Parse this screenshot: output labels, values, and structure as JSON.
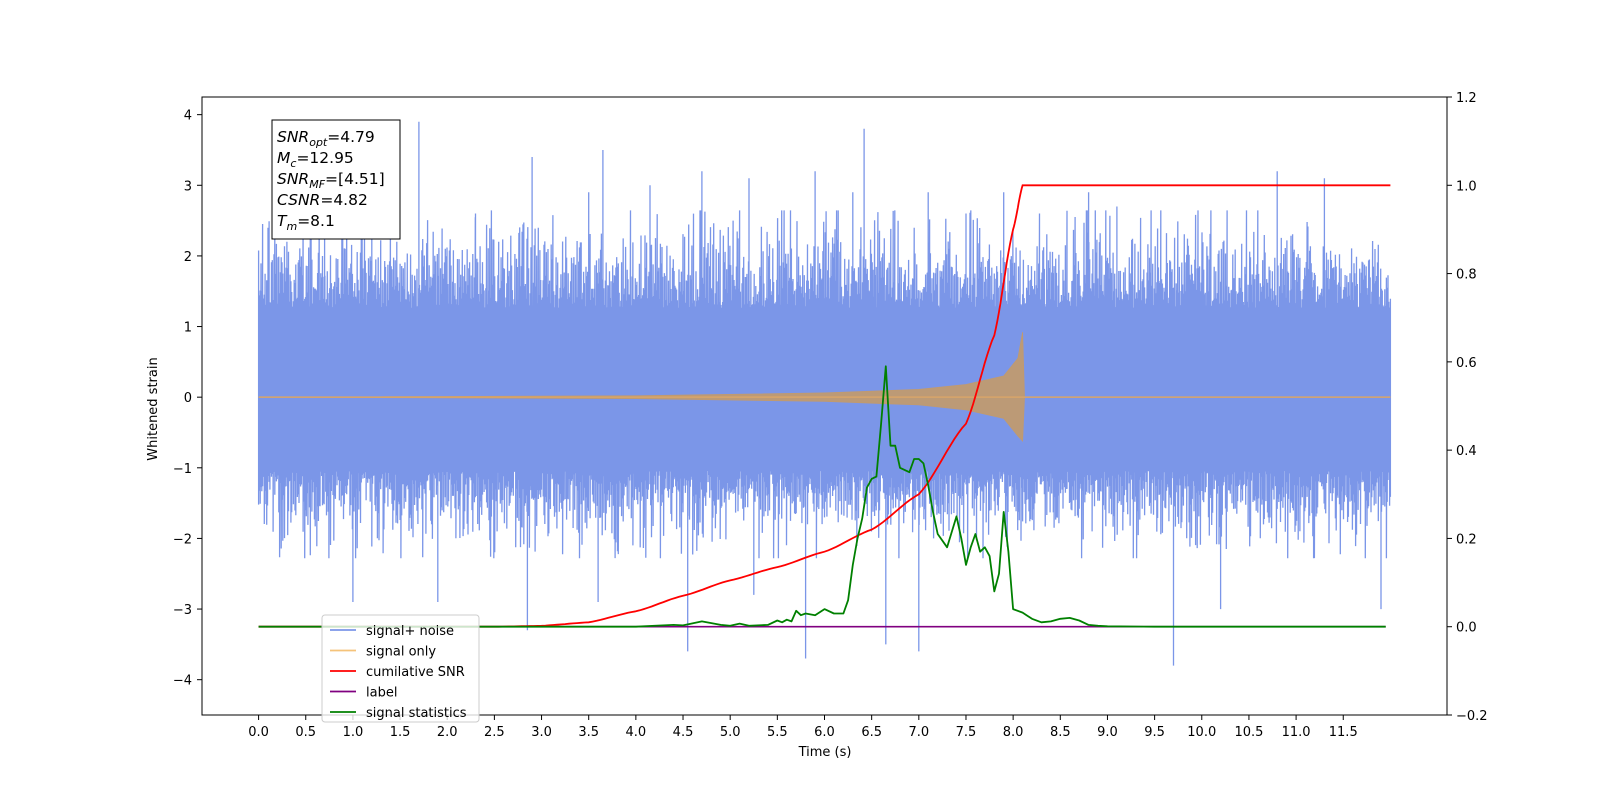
{
  "chart_data": {
    "type": "line",
    "xlabel": "Time (s)",
    "ylabel_left": "Whitened strain",
    "ylabel_right": "",
    "xlim": [
      -0.6,
      12.6
    ],
    "ylim_left": [
      -4.5,
      4.25
    ],
    "ylim_right": [
      -0.2,
      1.2
    ],
    "x_ticks": [
      "0.0",
      "0.5",
      "1.0",
      "1.5",
      "2.0",
      "2.5",
      "3.0",
      "3.5",
      "4.0",
      "4.5",
      "5.0",
      "5.5",
      "6.0",
      "6.5",
      "7.0",
      "7.5",
      "8.0",
      "8.5",
      "9.0",
      "9.5",
      "10.0",
      "10.5",
      "11.0",
      "11.5"
    ],
    "y_ticks_left": [
      "4",
      "3",
      "2",
      "1",
      "0",
      "−1",
      "−2",
      "−3",
      "−4"
    ],
    "y_ticks_right": [
      "1.2",
      "1.0",
      "0.8",
      "0.6",
      "0.4",
      "0.2",
      "0.0",
      "−0.2"
    ],
    "grid": false,
    "legend_position": "lower-left",
    "annotation": {
      "lines": [
        {
          "var": "SNR",
          "sub": "opt",
          "value": "=4.79"
        },
        {
          "var": "M",
          "sub": "c",
          "value": "=12.95"
        },
        {
          "var": "SNR",
          "sub": "MF",
          "value": "=[4.51]"
        },
        {
          "var": "CSNR",
          "sub": "",
          "value": "=4.82"
        },
        {
          "var": "T",
          "sub": "m",
          "value": "=8.1"
        }
      ]
    },
    "series": [
      {
        "name": "signal+ noise",
        "color": "#7b96e8",
        "axis": "left",
        "envelope": {
          "x_range": [
            0.0,
            12.0
          ],
          "typical_high": 2.3,
          "typical_low": -1.9,
          "spikes": [
            [
              0.1,
              2.4
            ],
            [
              0.3,
              2.2
            ],
            [
              0.7,
              2.6
            ],
            [
              1.0,
              -2.9
            ],
            [
              1.2,
              2.9
            ],
            [
              1.7,
              3.9
            ],
            [
              1.9,
              -2.9
            ],
            [
              2.3,
              2.6
            ],
            [
              2.85,
              -3.3
            ],
            [
              2.9,
              3.4
            ],
            [
              3.5,
              2.9
            ],
            [
              3.6,
              -2.9
            ],
            [
              3.65,
              3.5
            ],
            [
              4.15,
              3.0
            ],
            [
              4.55,
              -3.6
            ],
            [
              4.7,
              3.2
            ],
            [
              5.2,
              3.1
            ],
            [
              5.25,
              -2.8
            ],
            [
              5.8,
              -3.7
            ],
            [
              5.9,
              3.2
            ],
            [
              6.3,
              2.9
            ],
            [
              6.42,
              3.8
            ],
            [
              6.65,
              -3.5
            ],
            [
              7.0,
              -3.6
            ],
            [
              7.1,
              2.9
            ],
            [
              7.5,
              2.6
            ],
            [
              7.9,
              2.9
            ],
            [
              8.8,
              2.9
            ],
            [
              9.1,
              2.7
            ],
            [
              9.7,
              -3.8
            ],
            [
              10.2,
              -3.0
            ],
            [
              10.8,
              3.2
            ],
            [
              11.3,
              3.1
            ],
            [
              11.9,
              -3.0
            ]
          ]
        }
      },
      {
        "name": "signal only",
        "color": "#f5c37a",
        "axis": "left",
        "description_points": [
          [
            0.0,
            0.0
          ],
          [
            4.0,
            0.02
          ],
          [
            6.0,
            0.06
          ],
          [
            7.0,
            0.11
          ],
          [
            7.5,
            0.18
          ],
          [
            7.9,
            0.3
          ],
          [
            8.05,
            0.55
          ],
          [
            8.1,
            0.92
          ],
          [
            8.12,
            0.0
          ],
          [
            12.0,
            0.0
          ]
        ]
      },
      {
        "name": "cumilative SNR",
        "color": "#ff0000",
        "axis": "right",
        "x": [
          0.0,
          2.5,
          3.0,
          3.5,
          4.0,
          4.5,
          5.0,
          5.5,
          6.0,
          6.5,
          7.0,
          7.5,
          7.8,
          8.0,
          8.1,
          12.0
        ],
        "y": [
          0.0,
          0.0,
          0.002,
          0.01,
          0.035,
          0.07,
          0.105,
          0.135,
          0.17,
          0.22,
          0.3,
          0.46,
          0.66,
          0.9,
          1.0,
          1.0
        ]
      },
      {
        "name": "label",
        "color": "#800080",
        "axis": "right",
        "x": [
          0.0,
          11.95
        ],
        "y": [
          0.0,
          0.0
        ]
      },
      {
        "name": "signal statistics",
        "color": "#008000",
        "axis": "right",
        "x": [
          0.0,
          3.0,
          4.0,
          4.4,
          4.5,
          4.7,
          4.9,
          5.0,
          5.1,
          5.2,
          5.4,
          5.5,
          5.55,
          5.6,
          5.65,
          5.7,
          5.75,
          5.8,
          5.9,
          6.0,
          6.1,
          6.2,
          6.25,
          6.3,
          6.35,
          6.4,
          6.45,
          6.5,
          6.55,
          6.6,
          6.65,
          6.7,
          6.75,
          6.8,
          6.9,
          6.95,
          7.0,
          7.05,
          7.1,
          7.15,
          7.2,
          7.3,
          7.4,
          7.45,
          7.5,
          7.55,
          7.6,
          7.65,
          7.7,
          7.75,
          7.8,
          7.85,
          7.9,
          7.95,
          8.0,
          8.1,
          8.15,
          8.2,
          8.3,
          8.4,
          8.5,
          8.6,
          8.7,
          8.8,
          8.9,
          9.0,
          9.5,
          10.0,
          11.95
        ],
        "y": [
          0.0,
          0.0,
          0.0,
          0.004,
          0.003,
          0.012,
          0.004,
          0.002,
          0.007,
          0.002,
          0.004,
          0.014,
          0.01,
          0.016,
          0.012,
          0.036,
          0.026,
          0.03,
          0.026,
          0.04,
          0.03,
          0.03,
          0.06,
          0.14,
          0.2,
          0.245,
          0.315,
          0.335,
          0.34,
          0.46,
          0.59,
          0.41,
          0.41,
          0.36,
          0.35,
          0.38,
          0.38,
          0.37,
          0.32,
          0.26,
          0.21,
          0.18,
          0.25,
          0.2,
          0.14,
          0.18,
          0.21,
          0.17,
          0.18,
          0.16,
          0.08,
          0.12,
          0.26,
          0.17,
          0.04,
          0.032,
          0.025,
          0.018,
          0.01,
          0.012,
          0.018,
          0.02,
          0.014,
          0.004,
          0.002,
          0.001,
          0.0,
          0.0,
          0.0
        ]
      }
    ]
  }
}
